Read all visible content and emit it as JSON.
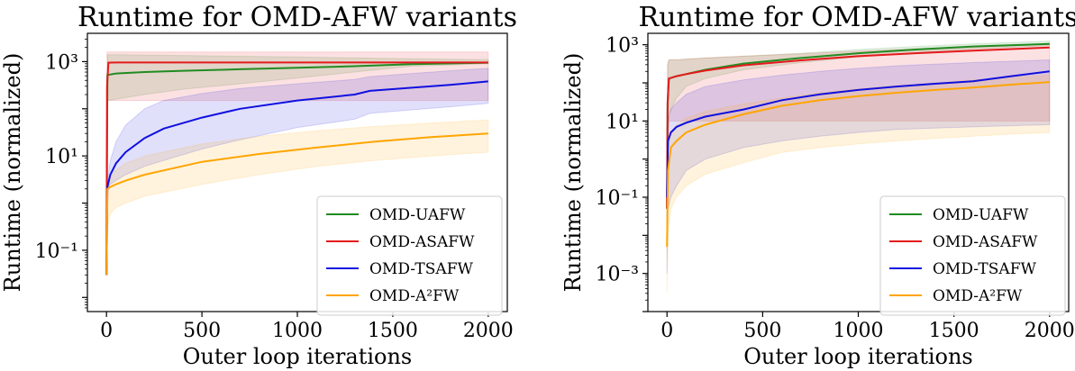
{
  "colors": {
    "OMD-UAFW": "#228b22",
    "OMD-ASAFW": "#e41a1c",
    "OMD-TSAFW": "#1010e0",
    "OMD-A2FW": "#ffa500"
  },
  "chart_data": [
    {
      "type": "line",
      "title": "Runtime for OMD-AFW variants",
      "xlabel": "Outer loop iterations",
      "ylabel": "Runtime (normalized)",
      "yscale": "log",
      "xlim": [
        -100,
        2100
      ],
      "ylim_log10": [
        -2.3,
        3.6
      ],
      "xticks": [
        0,
        500,
        1000,
        1500,
        2000
      ],
      "xtick_labels": [
        "0",
        "500",
        "1000",
        "1500",
        "2000"
      ],
      "yticks_log10": [
        -1,
        1,
        3
      ],
      "ytick_labels": [
        "10^{-1}",
        "10^{1}",
        "10^{3}"
      ],
      "legend_position": "lower-right",
      "grid": false,
      "series": [
        {
          "name": "OMD-UAFW",
          "x": [
            0,
            5,
            50,
            200,
            400,
            700,
            1000,
            1300,
            1600,
            2000
          ],
          "y": [
            0.03,
            520,
            560,
            600,
            640,
            690,
            740,
            800,
            880,
            950
          ],
          "band_low": [
            0.03,
            150,
            160,
            200,
            260,
            340,
            450,
            600,
            800,
            900
          ],
          "band_high": [
            0.03,
            1400,
            1400,
            1380,
            1350,
            1300,
            1250,
            1200,
            1150,
            1100
          ]
        },
        {
          "name": "OMD-ASAFW",
          "x": [
            0,
            3,
            10,
            50,
            200,
            500,
            1000,
            1500,
            2000
          ],
          "y": [
            0.03,
            300,
            950,
            960,
            960,
            960,
            960,
            960,
            960
          ],
          "band_low": [
            0.03,
            150,
            150,
            150,
            150,
            150,
            150,
            150,
            150
          ],
          "band_high": [
            0.03,
            1600,
            1600,
            1600,
            1600,
            1600,
            1600,
            1600,
            1600
          ]
        },
        {
          "name": "OMD-TSAFW",
          "x": [
            0,
            5,
            20,
            50,
            100,
            200,
            300,
            500,
            700,
            1000,
            1300,
            1380,
            1600,
            1800,
            2000
          ],
          "y": [
            0.03,
            2.2,
            4,
            7,
            12,
            24,
            38,
            65,
            100,
            150,
            200,
            240,
            280,
            320,
            380
          ],
          "band_low": [
            0.03,
            2,
            2.5,
            3,
            4,
            6,
            8,
            14,
            22,
            40,
            60,
            80,
            95,
            110,
            130
          ],
          "band_high": [
            0.03,
            3,
            8,
            20,
            45,
            100,
            150,
            210,
            270,
            340,
            420,
            480,
            560,
            640,
            720
          ]
        },
        {
          "name": "OMD-A²FW",
          "x": [
            0,
            5,
            20,
            50,
            100,
            200,
            500,
            800,
            1100,
            1400,
            1700,
            2000
          ],
          "y": [
            0.03,
            2,
            2.2,
            2.5,
            3,
            4,
            7.5,
            11,
            15,
            20,
            25,
            30
          ],
          "band_low": [
            0.03,
            0.3,
            0.6,
            0.8,
            1,
            1.4,
            2.5,
            4,
            6,
            8,
            10,
            12
          ],
          "band_high": [
            0.03,
            2.5,
            3.5,
            5,
            7,
            10,
            18,
            26,
            34,
            42,
            50,
            58
          ]
        }
      ]
    },
    {
      "type": "line",
      "title": "Runtime for OMD-AFW variants",
      "xlabel": "Outer loop iterations",
      "ylabel": "Runtime (normalized)",
      "yscale": "log",
      "xlim": [
        -100,
        2100
      ],
      "ylim_log10": [
        -4.0,
        3.3
      ],
      "xticks": [
        0,
        500,
        1000,
        1500,
        2000
      ],
      "xtick_labels": [
        "0",
        "500",
        "1000",
        "1500",
        "2000"
      ],
      "yticks_log10": [
        -3,
        -1,
        1,
        3
      ],
      "ytick_labels": [
        "10^{-3}",
        "10^{-1}",
        "10^{1}",
        "10^{3}"
      ],
      "legend_position": "lower-right",
      "grid": false,
      "series": [
        {
          "name": "OMD-UAFW",
          "x": [
            0,
            3,
            10,
            50,
            100,
            200,
            400,
            700,
            1000,
            1300,
            1600,
            2000
          ],
          "y": [
            0.05,
            30,
            130,
            150,
            170,
            220,
            320,
            450,
            600,
            750,
            900,
            1050
          ],
          "band_low": [
            0.01,
            3,
            15,
            40,
            80,
            130,
            220,
            340,
            480,
            620,
            780,
            950
          ],
          "band_high": [
            0.2,
            300,
            400,
            400,
            420,
            450,
            500,
            600,
            750,
            900,
            1050,
            1250
          ]
        },
        {
          "name": "OMD-ASAFW",
          "x": [
            0,
            3,
            10,
            50,
            100,
            200,
            400,
            700,
            1000,
            1300,
            1600,
            2000
          ],
          "y": [
            0.05,
            30,
            130,
            150,
            170,
            210,
            290,
            390,
            500,
            600,
            700,
            850
          ],
          "band_low": [
            0.01,
            3,
            10,
            10,
            10,
            10,
            10,
            10,
            10,
            10,
            10,
            10
          ],
          "band_high": [
            0.2,
            300,
            400,
            400,
            420,
            450,
            500,
            580,
            680,
            780,
            880,
            1050
          ]
        },
        {
          "name": "OMD-TSAFW",
          "x": [
            0,
            5,
            20,
            50,
            100,
            200,
            400,
            600,
            800,
            1000,
            1200,
            1400,
            1600,
            1800,
            2000
          ],
          "y": [
            0.1,
            3,
            5,
            7,
            9,
            13,
            20,
            35,
            50,
            65,
            80,
            95,
            110,
            150,
            200
          ],
          "band_low": [
            0.001,
            0.05,
            0.1,
            0.2,
            0.5,
            1,
            2,
            3,
            4,
            5,
            6,
            6.5,
            7,
            7.5,
            8
          ],
          "band_high": [
            0.1,
            10,
            20,
            30,
            50,
            80,
            120,
            160,
            200,
            240,
            280,
            310,
            340,
            370,
            400
          ]
        },
        {
          "name": "OMD-A²FW",
          "x": [
            0,
            5,
            20,
            50,
            100,
            200,
            400,
            600,
            800,
            1000,
            1200,
            1400,
            1600,
            1800,
            2000
          ],
          "y": [
            0.005,
            0.5,
            2,
            3,
            5,
            8,
            15,
            25,
            35,
            45,
            55,
            65,
            75,
            90,
            105
          ],
          "band_low": [
            0.0003,
            0.01,
            0.05,
            0.1,
            0.2,
            0.4,
            0.8,
            1.5,
            2,
            2.5,
            3,
            3.5,
            4,
            4.5,
            5
          ],
          "band_high": [
            0.01,
            2,
            5,
            8,
            12,
            18,
            28,
            40,
            55,
            70,
            85,
            100,
            120,
            140,
            160
          ]
        }
      ]
    }
  ]
}
